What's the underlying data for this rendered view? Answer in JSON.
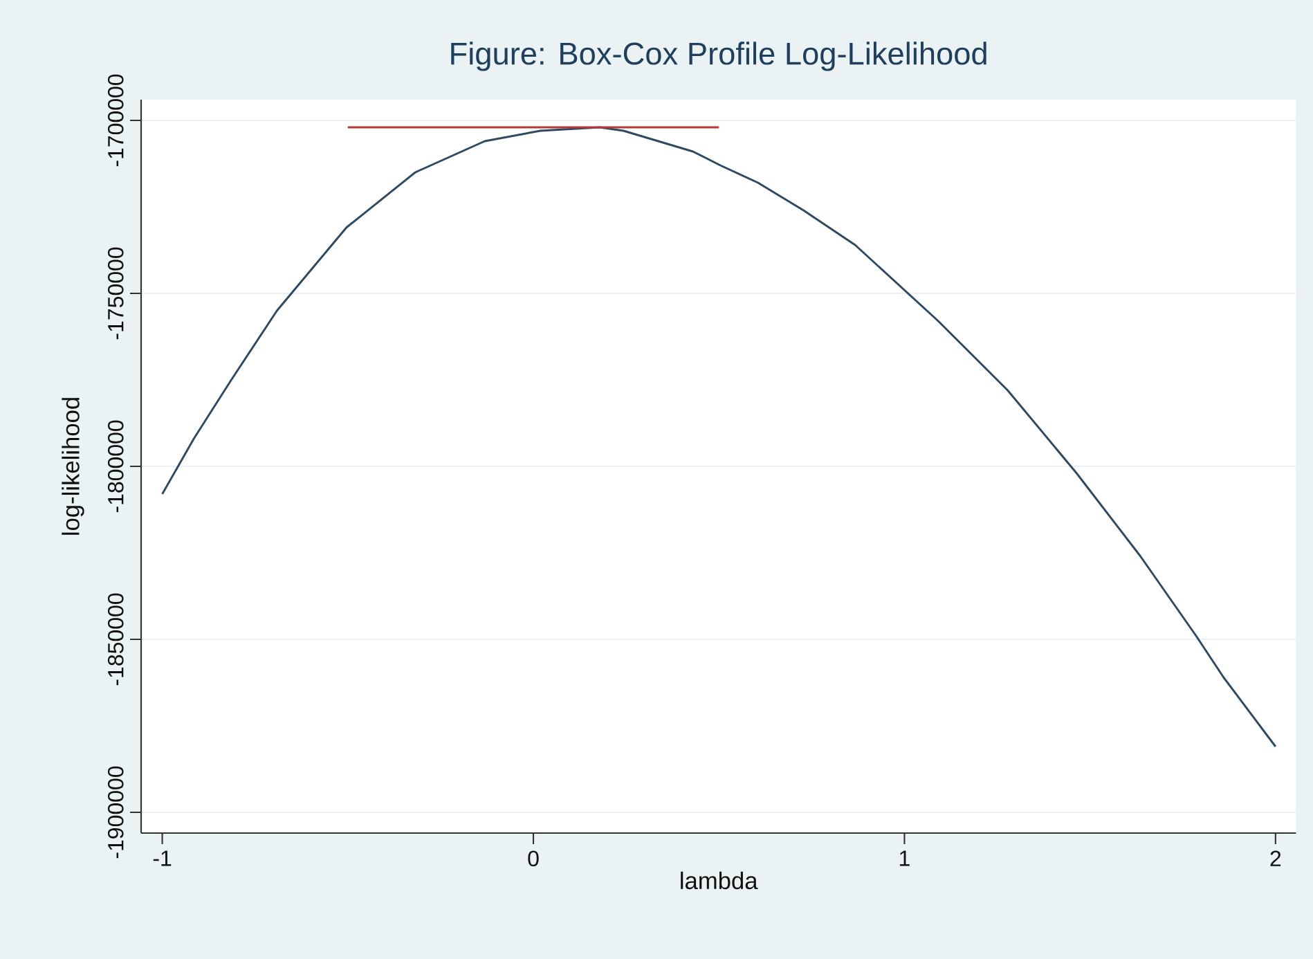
{
  "chart_data": {
    "type": "line",
    "title": "Figure: Box-Cox Profile Log-Likelihood",
    "xlabel": "lambda",
    "ylabel": "log-likelihood",
    "xlim": [
      -1.057,
      2.055
    ],
    "ylim": [
      -1906000,
      -1694000
    ],
    "xticks": [
      -1,
      0,
      1,
      2
    ],
    "yticks": [
      -1900000,
      -1850000,
      -1800000,
      -1750000,
      -1700000
    ],
    "grid": "y",
    "series": [
      {
        "color": "#2e4a62",
        "x": [
          -1,
          -0.915,
          -0.814,
          -0.691,
          -0.504,
          -0.318,
          -0.131,
          0.019,
          0.179,
          0.243,
          0.43,
          0.504,
          0.605,
          0.728,
          0.867,
          1.091,
          1.278,
          1.464,
          1.636,
          1.786,
          1.86,
          2.0
        ],
        "values": [
          -1808000,
          -1792000,
          -1775000,
          -1755000,
          -1731000,
          -1715000,
          -1706000,
          -1703000,
          -1702000,
          -1703000,
          -1709000,
          -1713000,
          -1718000,
          -1726000,
          -1736000,
          -1758000,
          -1778000,
          -1802000,
          -1826000,
          -1849000,
          -1861000,
          -1881000
        ]
      },
      {
        "color": "#b03a3a",
        "x": [
          -0.5,
          0.5
        ],
        "values": [
          -1702000,
          -1702000
        ]
      }
    ]
  }
}
